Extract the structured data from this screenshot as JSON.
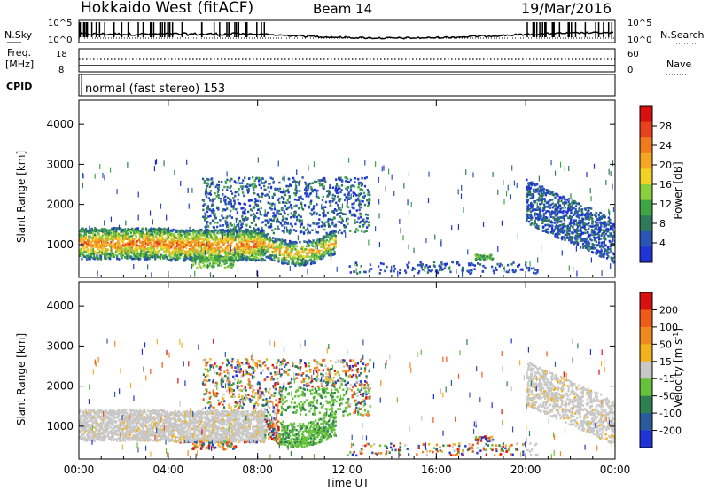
{
  "header": {
    "title": "Hokkaido West (fitACF)",
    "beam": "Beam 14",
    "date": "19/Mar/2016"
  },
  "top_panels": {
    "nsky_label": "N.Sky",
    "nsearch_label": "N.Search",
    "freq_label_1": "Freq.",
    "freq_label_2": "[MHz]",
    "nave_label": "Nave",
    "cpid_label": "CPID",
    "cpid_text": "normal (fast stereo) 153",
    "noise_left_ticks": [
      "10^5",
      "10^0"
    ],
    "noise_right_ticks": [
      "10^5",
      "10^0"
    ],
    "freq_left_ticks": [
      "18",
      "8"
    ],
    "freq_right_ticks": [
      "60",
      "0"
    ]
  },
  "chart_data": [
    {
      "type": "heatmap",
      "title": "",
      "xlabel": "Time UT",
      "ylabel": "Slant Range [km]",
      "x_tick_labels": [
        "00:00",
        "04:00",
        "08:00",
        "12:00",
        "16:00",
        "20:00",
        "00:00"
      ],
      "x_ticks_hours": [
        0,
        4,
        8,
        12,
        16,
        20,
        24
      ],
      "xlim": [
        0,
        24
      ],
      "y_ticks": [
        1000,
        2000,
        3000,
        4000
      ],
      "ylim": [
        180,
        4600
      ],
      "colorbar": {
        "label": "Power [dB]",
        "ticks": [
          "4",
          "8",
          "12",
          "16",
          "20",
          "24",
          "28"
        ],
        "colors": [
          "#1f33d6",
          "#2a55b4",
          "#2f7a5a",
          "#3fa646",
          "#8ccf3c",
          "#f2d224",
          "#f5a623",
          "#f07a1e",
          "#e8421c",
          "#d81010"
        ]
      },
      "regions": [
        {
          "label": "near range band",
          "t": [
            0.0,
            8.3
          ],
          "range": [
            680,
            1460
          ],
          "level": "high"
        },
        {
          "label": "mid range patches",
          "t": [
            5.5,
            13.0
          ],
          "range": [
            1200,
            2800
          ],
          "level": "low"
        },
        {
          "label": "evening band",
          "t": [
            20.0,
            24.0
          ],
          "range": [
            700,
            2600
          ],
          "level": "low"
        }
      ]
    },
    {
      "type": "heatmap",
      "title": "",
      "xlabel": "Time UT",
      "ylabel": "Slant Range [km]",
      "x_tick_labels": [
        "00:00",
        "04:00",
        "08:00",
        "12:00",
        "16:00",
        "20:00",
        "00:00"
      ],
      "x_ticks_hours": [
        0,
        4,
        8,
        12,
        16,
        20,
        24
      ],
      "xlim": [
        0,
        24
      ],
      "y_ticks": [
        1000,
        2000,
        3000,
        4000
      ],
      "ylim": [
        180,
        4600
      ],
      "colorbar": {
        "label": "Velocity [m s^-1]",
        "ticks": [
          "200",
          "100",
          "50",
          "15",
          "-15",
          "-50",
          "-100",
          "-200"
        ],
        "colors": [
          "#1f33d6",
          "#2b5a9c",
          "#2e8050",
          "#66c23a",
          "#c8c8c8",
          "#f2b21e",
          "#f08a1e",
          "#ee5a1a",
          "#d81010"
        ]
      },
      "regions": [
        {
          "label": "ground scatter band",
          "t": [
            0.0,
            8.3
          ],
          "range": [
            680,
            1460
          ],
          "level": "grey"
        },
        {
          "label": "mid range patches",
          "t": [
            6.5,
            12.5
          ],
          "range": [
            1200,
            2800
          ],
          "level": "mixed"
        },
        {
          "label": "evening band",
          "t": [
            20.0,
            24.0
          ],
          "range": [
            700,
            2600
          ],
          "level": "grey"
        }
      ]
    }
  ]
}
